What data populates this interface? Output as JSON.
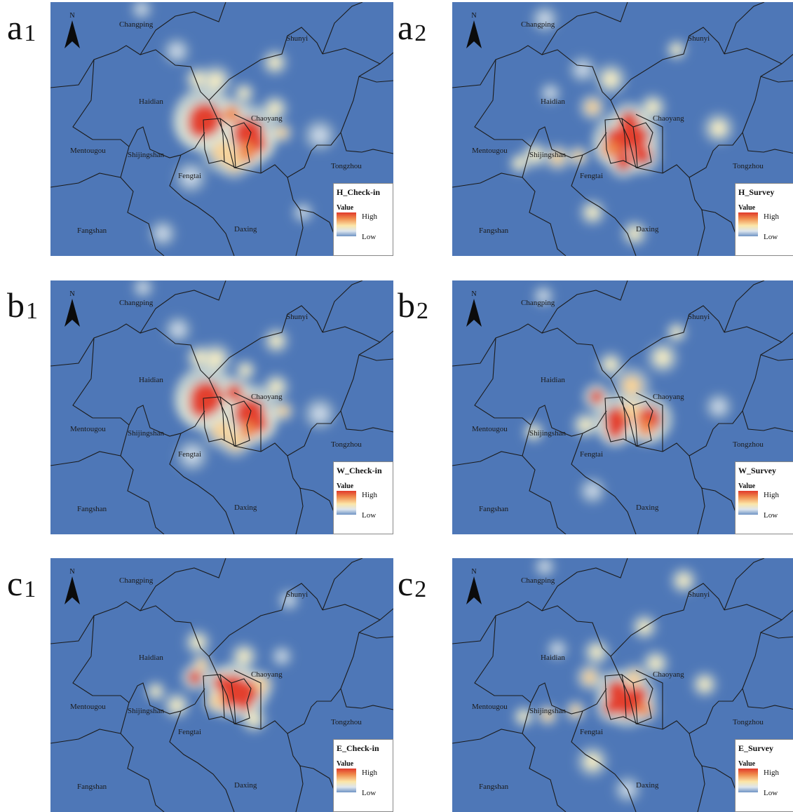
{
  "panels": [
    {
      "id": "a1",
      "letter": "a",
      "sub": "1",
      "legend_title": "H_Check-in"
    },
    {
      "id": "a2",
      "letter": "a",
      "sub": "2",
      "legend_title": "H_Survey"
    },
    {
      "id": "b1",
      "letter": "b",
      "sub": "1",
      "legend_title": "W_Check-in"
    },
    {
      "id": "b2",
      "letter": "b",
      "sub": "2",
      "legend_title": "W_Survey"
    },
    {
      "id": "c1",
      "letter": "c",
      "sub": "1",
      "legend_title": "E_Check-in"
    },
    {
      "id": "c2",
      "letter": "c",
      "sub": "2",
      "legend_title": "E_Survey"
    }
  ],
  "districts": {
    "changping": "Changping",
    "shunyi": "Shunyi",
    "haidian": "Haidian",
    "chaoyang": "Chaoyang",
    "mentougou": "Mentougou",
    "shijingshan": "Shijingshan",
    "tongzhou": "Tongzhou",
    "fengtai": "Fengtai",
    "fangshan": "Fangshan",
    "daxing": "Daxing"
  },
  "north_label": "N",
  "legend": {
    "value_label": "Value",
    "high": "High",
    "low": "Low"
  },
  "colors": {
    "background": "#4e77b7",
    "high": "#e0392b",
    "mid": "#fbe6a8",
    "low": "#6f93c4"
  }
}
